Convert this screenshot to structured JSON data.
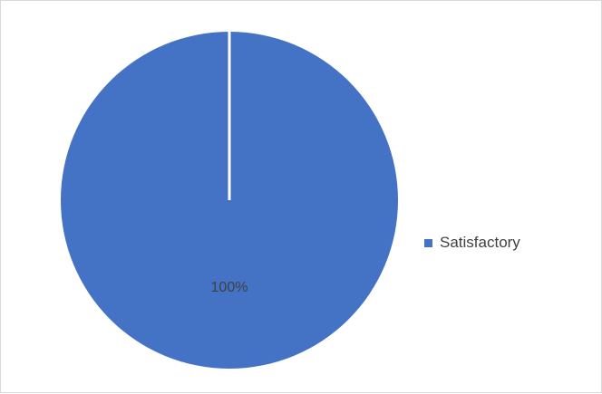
{
  "chart_data": {
    "type": "pie",
    "title": "",
    "categories": [
      "Satisfactory"
    ],
    "values": [
      100
    ],
    "data_labels": [
      "100%"
    ],
    "colors": [
      "#4472c4"
    ],
    "start_angle_deg": 0,
    "legend": {
      "position": "right"
    },
    "grid": false
  }
}
